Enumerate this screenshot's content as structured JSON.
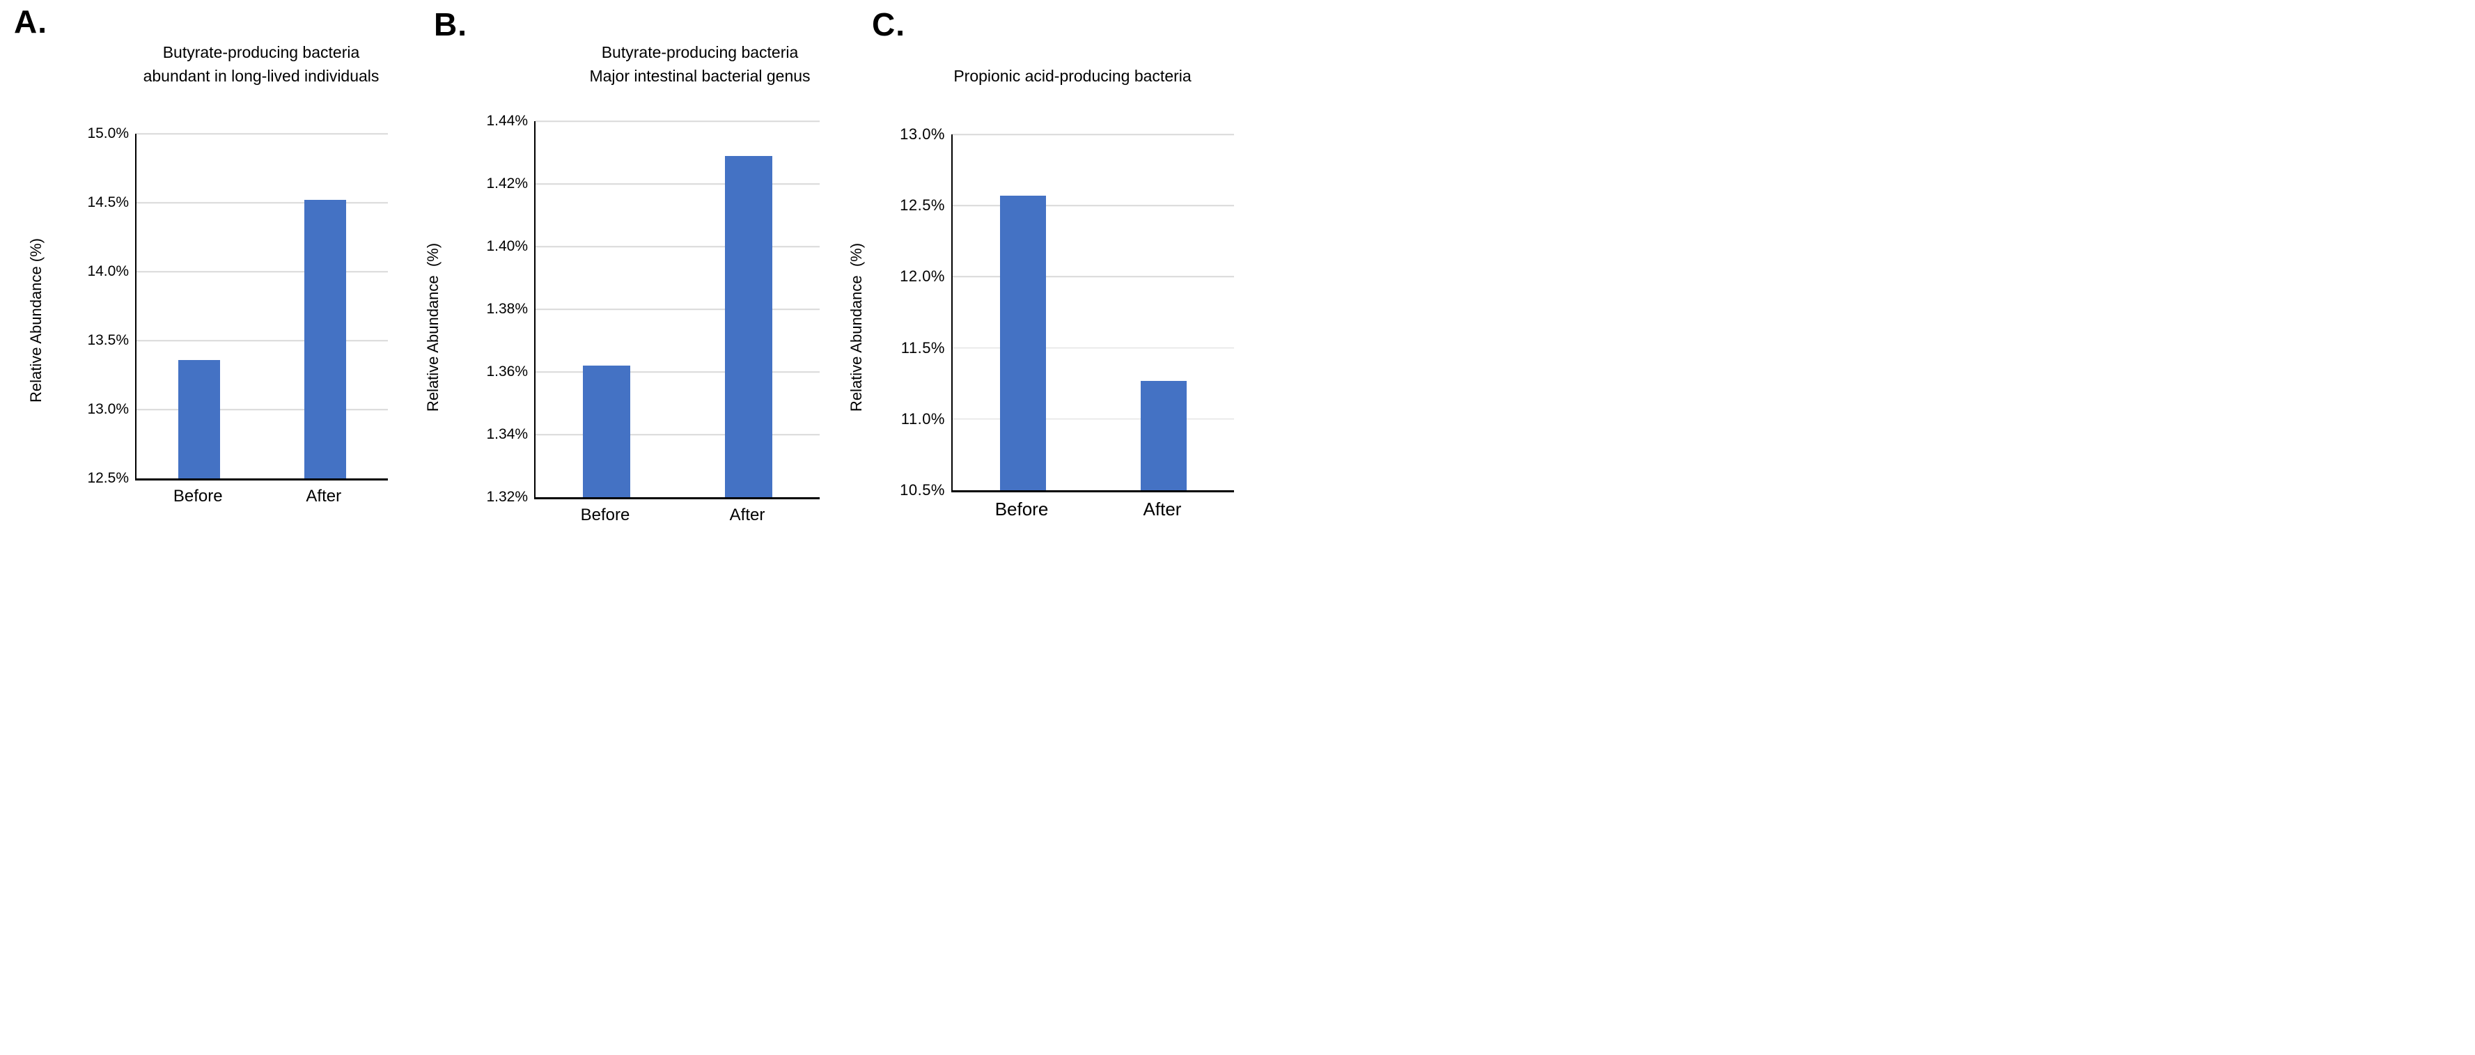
{
  "figure": {
    "background": "#FFFFFF",
    "text_color": "#000000",
    "axis_color": "#000000",
    "gridline_color": "#D9D9D9",
    "bar_color": "#4472C4"
  },
  "chart_data": [
    {
      "type": "bar",
      "panel_letter": "A.",
      "title": "Butyrate-producing bacteria abundant in long-lived individuals",
      "title_lines": [
        "Butyrate-producing bacteria",
        "abundant in long-lived individuals"
      ],
      "ylabel": "Relative Abundance (%)",
      "xlabel": "",
      "categories": [
        "Before",
        "After"
      ],
      "values": [
        13.36,
        14.52
      ],
      "value_unit": "%",
      "ylim": [
        12.5,
        15.0
      ],
      "ytick_step": 0.5,
      "yticks": [
        {
          "label": "15.0%",
          "value": 15.0
        },
        {
          "label": "14.5%",
          "value": 14.5
        },
        {
          "label": "14.0%",
          "value": 14.0
        },
        {
          "label": "13.5%",
          "value": 13.5
        },
        {
          "label": "13.0%",
          "value": 13.0
        },
        {
          "label": "12.5%",
          "value": 12.5
        }
      ],
      "grid": true,
      "legend": "none",
      "bar_color": "#4472C4"
    },
    {
      "type": "bar",
      "panel_letter": "B.",
      "title": "Butyrate-producing bacteria Major intestinal bacterial genus",
      "title_lines": [
        "Butyrate-producing bacteria",
        "Major intestinal bacterial genus"
      ],
      "ylabel": "Relative Abundance  (%)",
      "xlabel": "",
      "categories": [
        "Before",
        "After"
      ],
      "values": [
        1.362,
        1.429
      ],
      "value_unit": "%",
      "ylim": [
        1.32,
        1.44
      ],
      "ytick_step": 0.02,
      "yticks": [
        {
          "label": "1.44%",
          "value": 1.44
        },
        {
          "label": "1.42%",
          "value": 1.42
        },
        {
          "label": "1.40%",
          "value": 1.4
        },
        {
          "label": "1.38%",
          "value": 1.38
        },
        {
          "label": "1.36%",
          "value": 1.36
        },
        {
          "label": "1.34%",
          "value": 1.34
        },
        {
          "label": "1.32%",
          "value": 1.32
        }
      ],
      "grid": true,
      "legend": "none",
      "bar_color": "#4472C4"
    },
    {
      "type": "bar",
      "panel_letter": "C.",
      "title": "Propionic acid-producing bacteria",
      "title_lines": [
        "Propionic acid-producing bacteria"
      ],
      "ylabel": "Relative Abundance  (%)",
      "xlabel": "",
      "categories": [
        "Before",
        "After"
      ],
      "values": [
        12.57,
        11.27
      ],
      "value_unit": "%",
      "ylim": [
        10.5,
        13.0
      ],
      "ytick_step": 0.5,
      "yticks": [
        {
          "label": "13.0%",
          "value": 13.0
        },
        {
          "label": "12.5%",
          "value": 12.5
        },
        {
          "label": "12.0%",
          "value": 12.0
        },
        {
          "label": "11.5%",
          "value": 11.5
        },
        {
          "label": "11.0%",
          "value": 11.0
        },
        {
          "label": "10.5%",
          "value": 10.5
        }
      ],
      "grid": true,
      "legend": "none",
      "bar_color": "#4472C4"
    }
  ]
}
